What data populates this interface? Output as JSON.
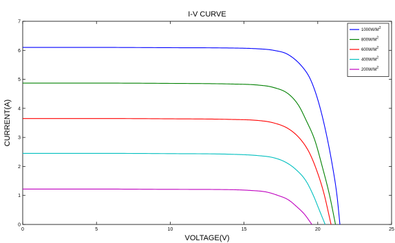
{
  "chart_data": {
    "type": "line",
    "title": "I-V CURVE",
    "xlabel": "VOLTAGE(V)",
    "ylabel": "CURRENT(A)",
    "xlim": [
      0,
      25
    ],
    "ylim": [
      0,
      7
    ],
    "xticks": [
      0,
      5,
      10,
      15,
      20,
      25
    ],
    "yticks": [
      0,
      1,
      2,
      3,
      4,
      5,
      6,
      7
    ],
    "grid": false,
    "legend_position": "top-right",
    "series": [
      {
        "name": "1000W/M",
        "sup": "2",
        "color": "#0000ff",
        "isc": 6.1,
        "voc": 21.5,
        "points": [
          [
            0,
            6.1
          ],
          [
            5,
            6.1
          ],
          [
            10,
            6.09
          ],
          [
            14,
            6.08
          ],
          [
            16,
            6.05
          ],
          [
            17,
            6.0
          ],
          [
            18,
            5.85
          ],
          [
            19,
            5.4
          ],
          [
            19.5,
            5.0
          ],
          [
            20,
            4.3
          ],
          [
            20.5,
            3.3
          ],
          [
            21,
            2.0
          ],
          [
            21.3,
            1.0
          ],
          [
            21.5,
            0
          ]
        ]
      },
      {
        "name": "800W/M",
        "sup": "2",
        "color": "#008000",
        "isc": 4.87,
        "voc": 21.2,
        "points": [
          [
            0,
            4.87
          ],
          [
            5,
            4.87
          ],
          [
            10,
            4.86
          ],
          [
            14,
            4.84
          ],
          [
            16,
            4.8
          ],
          [
            17,
            4.72
          ],
          [
            18,
            4.5
          ],
          [
            18.7,
            4.1
          ],
          [
            19.2,
            3.6
          ],
          [
            19.8,
            2.9
          ],
          [
            20.3,
            2.0
          ],
          [
            20.8,
            1.0
          ],
          [
            21.2,
            0
          ]
        ]
      },
      {
        "name": "600W/M",
        "sup": "2",
        "color": "#ff0000",
        "isc": 3.65,
        "voc": 20.9,
        "points": [
          [
            0,
            3.65
          ],
          [
            5,
            3.65
          ],
          [
            10,
            3.64
          ],
          [
            14,
            3.62
          ],
          [
            16,
            3.58
          ],
          [
            17,
            3.5
          ],
          [
            18,
            3.3
          ],
          [
            18.8,
            2.95
          ],
          [
            19.4,
            2.5
          ],
          [
            19.9,
            1.9
          ],
          [
            20.4,
            1.1
          ],
          [
            20.9,
            0
          ]
        ]
      },
      {
        "name": "400W/M",
        "sup": "2",
        "color": "#00bfbf",
        "isc": 2.45,
        "voc": 20.5,
        "points": [
          [
            0,
            2.45
          ],
          [
            5,
            2.45
          ],
          [
            10,
            2.44
          ],
          [
            14,
            2.42
          ],
          [
            16,
            2.37
          ],
          [
            17,
            2.3
          ],
          [
            17.8,
            2.15
          ],
          [
            18.5,
            1.9
          ],
          [
            19.2,
            1.5
          ],
          [
            19.7,
            1.0
          ],
          [
            20.1,
            0.5
          ],
          [
            20.5,
            0
          ]
        ]
      },
      {
        "name": "200W/M",
        "sup": "2",
        "color": "#bf00bf",
        "isc": 1.22,
        "voc": 19.6,
        "points": [
          [
            0,
            1.22
          ],
          [
            5,
            1.22
          ],
          [
            10,
            1.21
          ],
          [
            14,
            1.2
          ],
          [
            15.5,
            1.17
          ],
          [
            16.5,
            1.12
          ],
          [
            17.3,
            1.0
          ],
          [
            18,
            0.85
          ],
          [
            18.6,
            0.6
          ],
          [
            19.1,
            0.35
          ],
          [
            19.6,
            0
          ]
        ]
      }
    ]
  }
}
